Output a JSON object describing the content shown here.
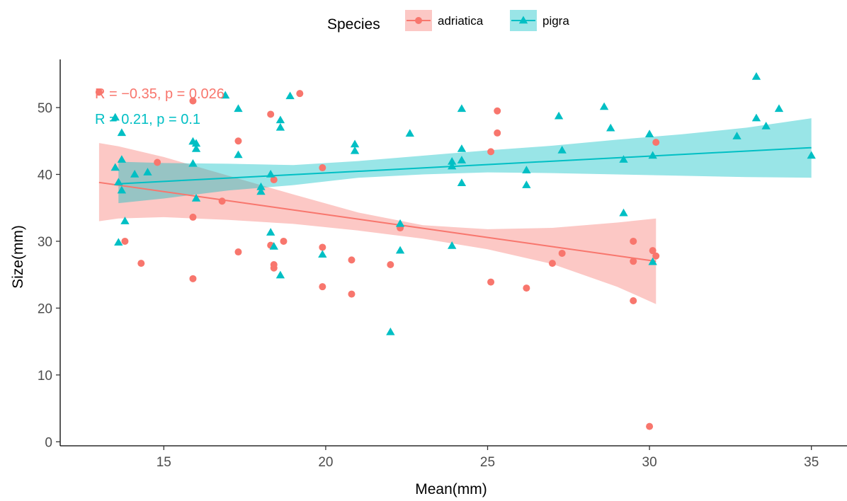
{
  "chart_data": {
    "type": "scatter",
    "xlabel": "Mean(mm)",
    "ylabel": "Size(mm)",
    "xlim": [
      11.8,
      36.1
    ],
    "ylim": [
      -0.6,
      57.2
    ],
    "x_ticks": [
      15,
      20,
      25,
      30,
      35
    ],
    "y_ticks": [
      0,
      10,
      20,
      30,
      40,
      50
    ],
    "x_tick_labels": [
      "15",
      "20",
      "25",
      "30",
      "35"
    ],
    "y_tick_labels": [
      "0",
      "10",
      "20",
      "30",
      "40",
      "50"
    ],
    "grid": false,
    "legend": {
      "title": "Species",
      "position": "top",
      "entries": [
        "adriatica",
        "pigra"
      ]
    },
    "series": [
      {
        "name": "adriatica",
        "color": "#F8766D",
        "marker": "circle",
        "stat_label": "R = −0.35, p = 0.026",
        "fit": {
          "x": [
            13.0,
            30.2
          ],
          "y": [
            38.8,
            27.0
          ],
          "ci_lower": [
            33.0,
            20.6
          ],
          "ci_upper": [
            44.7,
            33.4
          ],
          "ci_x": [
            13.0,
            13.6,
            15.0,
            17.0,
            19.0,
            21.0,
            23.0,
            25.0,
            27.0,
            29.0,
            30.2
          ],
          "ci_lo": [
            33.0,
            33.4,
            33.6,
            33.2,
            32.6,
            31.6,
            30.4,
            28.8,
            26.6,
            23.2,
            20.6
          ],
          "ci_hi": [
            44.7,
            44.2,
            42.6,
            39.8,
            37.0,
            34.3,
            32.4,
            31.8,
            32.0,
            32.8,
            33.4
          ]
        },
        "points": [
          [
            13.0,
            52.3
          ],
          [
            13.8,
            30.0
          ],
          [
            14.3,
            26.7
          ],
          [
            14.8,
            41.8
          ],
          [
            15.9,
            51.0
          ],
          [
            15.9,
            33.6
          ],
          [
            15.9,
            24.4
          ],
          [
            16.8,
            36.0
          ],
          [
            17.3,
            45.0
          ],
          [
            17.3,
            28.4
          ],
          [
            18.3,
            49.0
          ],
          [
            18.3,
            29.4
          ],
          [
            18.4,
            26.5
          ],
          [
            18.4,
            26.0
          ],
          [
            18.4,
            39.2
          ],
          [
            18.7,
            30.0
          ],
          [
            19.2,
            52.1
          ],
          [
            19.9,
            41.0
          ],
          [
            19.9,
            29.1
          ],
          [
            19.9,
            23.2
          ],
          [
            20.8,
            27.2
          ],
          [
            20.8,
            22.1
          ],
          [
            22.0,
            26.5
          ],
          [
            22.3,
            32.0
          ],
          [
            25.1,
            43.4
          ],
          [
            25.1,
            23.9
          ],
          [
            25.3,
            49.5
          ],
          [
            25.3,
            46.2
          ],
          [
            26.2,
            23.0
          ],
          [
            27.0,
            26.7
          ],
          [
            27.3,
            28.2
          ],
          [
            29.5,
            30.0
          ],
          [
            29.5,
            27.0
          ],
          [
            29.5,
            21.1
          ],
          [
            30.0,
            2.3
          ],
          [
            30.1,
            28.6
          ],
          [
            30.2,
            27.8
          ],
          [
            30.2,
            44.8
          ]
        ]
      },
      {
        "name": "pigra",
        "color": "#00BFC4",
        "marker": "triangle",
        "stat_label": "R = 0.21, p = 0.1",
        "fit": {
          "x": [
            13.6,
            35.0
          ],
          "y": [
            38.6,
            44.0
          ],
          "ci_x": [
            13.6,
            15.0,
            17.0,
            19.0,
            21.0,
            23.0,
            25.0,
            27.0,
            29.0,
            31.0,
            33.0,
            35.0
          ],
          "ci_lo": [
            35.7,
            36.4,
            37.6,
            38.4,
            39.5,
            40.0,
            40.3,
            40.2,
            40.0,
            39.8,
            39.6,
            39.5
          ],
          "ci_hi": [
            41.9,
            41.7,
            41.6,
            41.4,
            42.0,
            42.8,
            43.6,
            44.3,
            45.2,
            46.0,
            47.0,
            48.4
          ]
        },
        "points": [
          [
            13.5,
            48.5
          ],
          [
            13.5,
            41.0
          ],
          [
            13.6,
            38.8
          ],
          [
            13.6,
            29.8
          ],
          [
            13.7,
            46.2
          ],
          [
            13.7,
            42.2
          ],
          [
            13.7,
            37.6
          ],
          [
            13.8,
            33.0
          ],
          [
            14.1,
            40.0
          ],
          [
            14.5,
            40.3
          ],
          [
            15.9,
            44.9
          ],
          [
            15.9,
            41.6
          ],
          [
            16.0,
            44.6
          ],
          [
            16.0,
            43.8
          ],
          [
            16.0,
            36.4
          ],
          [
            16.9,
            51.8
          ],
          [
            17.3,
            49.8
          ],
          [
            17.3,
            42.9
          ],
          [
            18.0,
            38.1
          ],
          [
            18.0,
            37.4
          ],
          [
            18.3,
            40.0
          ],
          [
            18.3,
            31.3
          ],
          [
            18.4,
            29.2
          ],
          [
            18.6,
            48.1
          ],
          [
            18.6,
            47.0
          ],
          [
            18.6,
            24.9
          ],
          [
            18.9,
            51.7
          ],
          [
            19.9,
            28.0
          ],
          [
            20.9,
            44.5
          ],
          [
            20.9,
            43.5
          ],
          [
            22.0,
            16.4
          ],
          [
            22.3,
            32.6
          ],
          [
            22.3,
            28.6
          ],
          [
            22.6,
            46.1
          ],
          [
            23.9,
            41.9
          ],
          [
            23.9,
            41.2
          ],
          [
            23.9,
            29.3
          ],
          [
            24.2,
            49.8
          ],
          [
            24.2,
            43.8
          ],
          [
            24.2,
            42.1
          ],
          [
            24.2,
            38.7
          ],
          [
            26.2,
            40.6
          ],
          [
            26.2,
            38.4
          ],
          [
            27.2,
            48.7
          ],
          [
            27.3,
            43.6
          ],
          [
            28.6,
            50.1
          ],
          [
            28.8,
            46.9
          ],
          [
            29.2,
            42.2
          ],
          [
            29.2,
            34.2
          ],
          [
            30.0,
            46.0
          ],
          [
            30.1,
            42.8
          ],
          [
            30.1,
            26.9
          ],
          [
            32.7,
            45.7
          ],
          [
            33.3,
            54.6
          ],
          [
            33.3,
            48.4
          ],
          [
            33.6,
            47.2
          ],
          [
            34.0,
            49.8
          ],
          [
            35.0,
            42.8
          ]
        ]
      }
    ]
  }
}
